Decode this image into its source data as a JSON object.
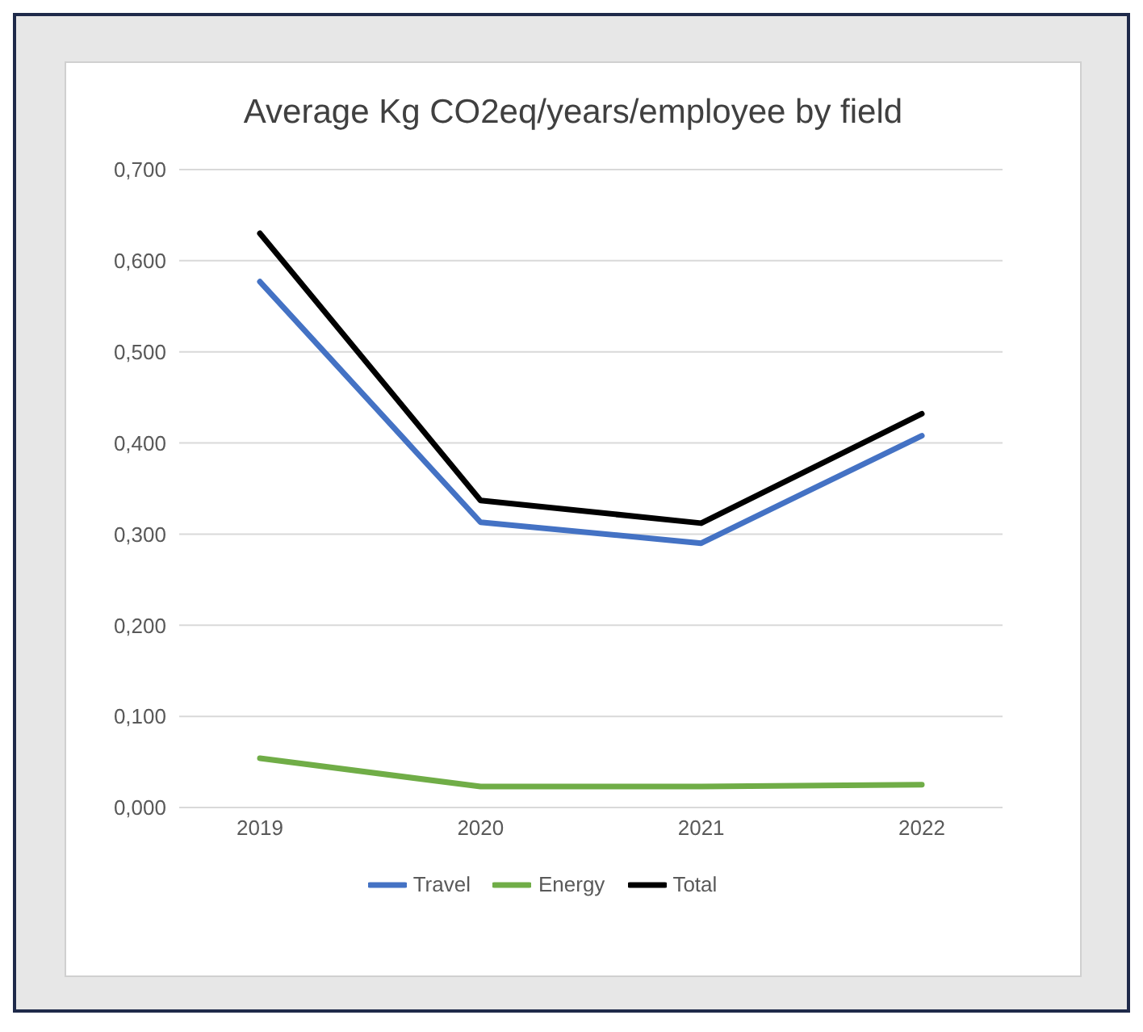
{
  "chart_data": {
    "type": "line",
    "title": "Average Kg CO2eq/years/employee  by field",
    "categories": [
      "2019",
      "2020",
      "2021",
      "2022"
    ],
    "series": [
      {
        "name": "Travel",
        "color": "#4472c4",
        "values": [
          0.577,
          0.313,
          0.29,
          0.408
        ]
      },
      {
        "name": "Energy",
        "color": "#70ad47",
        "values": [
          0.054,
          0.023,
          0.023,
          0.025
        ]
      },
      {
        "name": "Total",
        "color": "#000000",
        "values": [
          0.63,
          0.337,
          0.312,
          0.432
        ]
      }
    ],
    "ylim": [
      0,
      0.7
    ],
    "yticks": [
      {
        "value": 0,
        "label": "0,000"
      },
      {
        "value": 0.1,
        "label": "0,100"
      },
      {
        "value": 0.2,
        "label": "0,200"
      },
      {
        "value": 0.3,
        "label": "0,300"
      },
      {
        "value": 0.4,
        "label": "0,400"
      },
      {
        "value": 0.5,
        "label": "0,500"
      },
      {
        "value": 0.6,
        "label": "0,600"
      },
      {
        "value": 0.7,
        "label": "0,700"
      }
    ],
    "grid": "y",
    "legend": "bottom",
    "marker": "none",
    "line_style": "solid"
  }
}
